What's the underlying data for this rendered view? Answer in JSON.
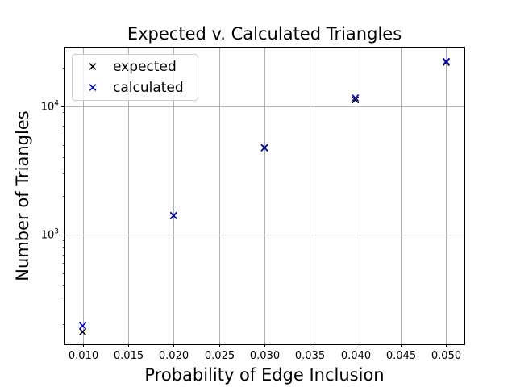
{
  "chart_data": {
    "type": "scatter",
    "title": "Expected v. Calculated Triangles",
    "xlabel": "Probability of Edge Inclusion",
    "ylabel": "Number of Triangles",
    "xlim": [
      0.008,
      0.052
    ],
    "ylim": [
      140,
      29000
    ],
    "yscale": "log",
    "grid": true,
    "legend_position": "upper-left",
    "x_ticks": [
      "0.010",
      "0.015",
      "0.020",
      "0.025",
      "0.030",
      "0.035",
      "0.040",
      "0.045",
      "0.050"
    ],
    "y_ticks": [
      {
        "value": 1000,
        "base": "10",
        "exp": "3"
      },
      {
        "value": 10000,
        "base": "10",
        "exp": "4"
      }
    ],
    "series": [
      {
        "name": "expected",
        "color": "#000000",
        "marker": "x",
        "x": [
          0.01,
          0.02,
          0.03,
          0.04,
          0.05
        ],
        "y": [
          175,
          1400,
          4730,
          11200,
          21900
        ]
      },
      {
        "name": "calculated",
        "color": "#0000cc",
        "marker": "x",
        "x": [
          0.01,
          0.02,
          0.03,
          0.04,
          0.05
        ],
        "y": [
          195,
          1410,
          4760,
          11600,
          22300
        ]
      }
    ]
  }
}
